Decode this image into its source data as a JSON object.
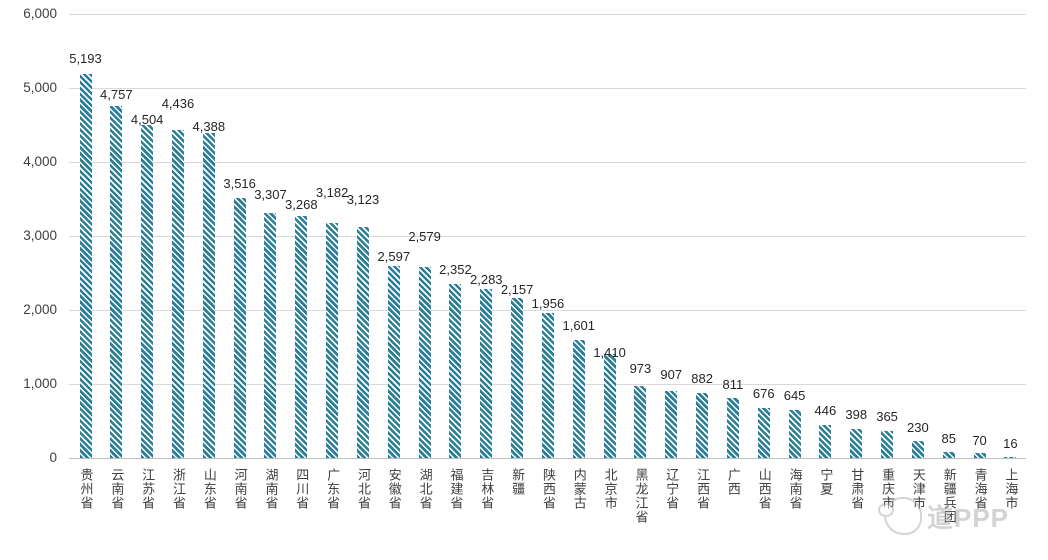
{
  "chart_data": {
    "type": "bar",
    "title": "",
    "xlabel": "",
    "ylabel": "",
    "categories": [
      "贵州省",
      "云南省",
      "江苏省",
      "浙江省",
      "山东省",
      "河南省",
      "湖南省",
      "四川省",
      "广东省",
      "河北省",
      "安徽省",
      "湖北省",
      "福建省",
      "吉林省",
      "新疆",
      "陕西省",
      "内蒙古",
      "北京市",
      "黑龙江省",
      "辽宁省",
      "江西省",
      "广西",
      "山西省",
      "海南省",
      "宁夏",
      "甘肃省",
      "重庆市",
      "天津市",
      "新疆兵团",
      "青海省",
      "上海市"
    ],
    "values": [
      5193,
      4757,
      4504,
      4436,
      4388,
      3516,
      3307,
      3268,
      3182,
      3123,
      2597,
      2579,
      2352,
      2283,
      2157,
      1956,
      1601,
      1410,
      973,
      907,
      882,
      811,
      676,
      645,
      446,
      398,
      365,
      230,
      85,
      70,
      16
    ],
    "value_labels": [
      "5,193",
      "4,757",
      "4,504",
      "4,436",
      "4,388",
      "3,516",
      "3,307",
      "3,268",
      "3,182",
      "3,123",
      "2,597",
      "2,579",
      "2,352",
      "2,283",
      "2,157",
      "1,956",
      "1,601",
      "1,410",
      "973",
      "907",
      "882",
      "811",
      "676",
      "645",
      "446",
      "398",
      "365",
      "230",
      "85",
      "70",
      "16"
    ],
    "ylim": [
      0,
      6000
    ],
    "ytick_step": 1000,
    "ytick_labels": [
      "0",
      "1,000",
      "2,000",
      "3,000",
      "4,000",
      "5,000",
      "6,000"
    ],
    "grid": true,
    "legend": "none",
    "bar_style": "diagonal-hatch",
    "colors": {
      "bar": "#2a7f97",
      "hatch_gap": "#ffffff",
      "gridline": "#d9d9d9",
      "axis_text": "#404040",
      "value_text": "#262626"
    }
  },
  "watermark": {
    "icon": "mascot-icon",
    "text": "道PPP"
  }
}
